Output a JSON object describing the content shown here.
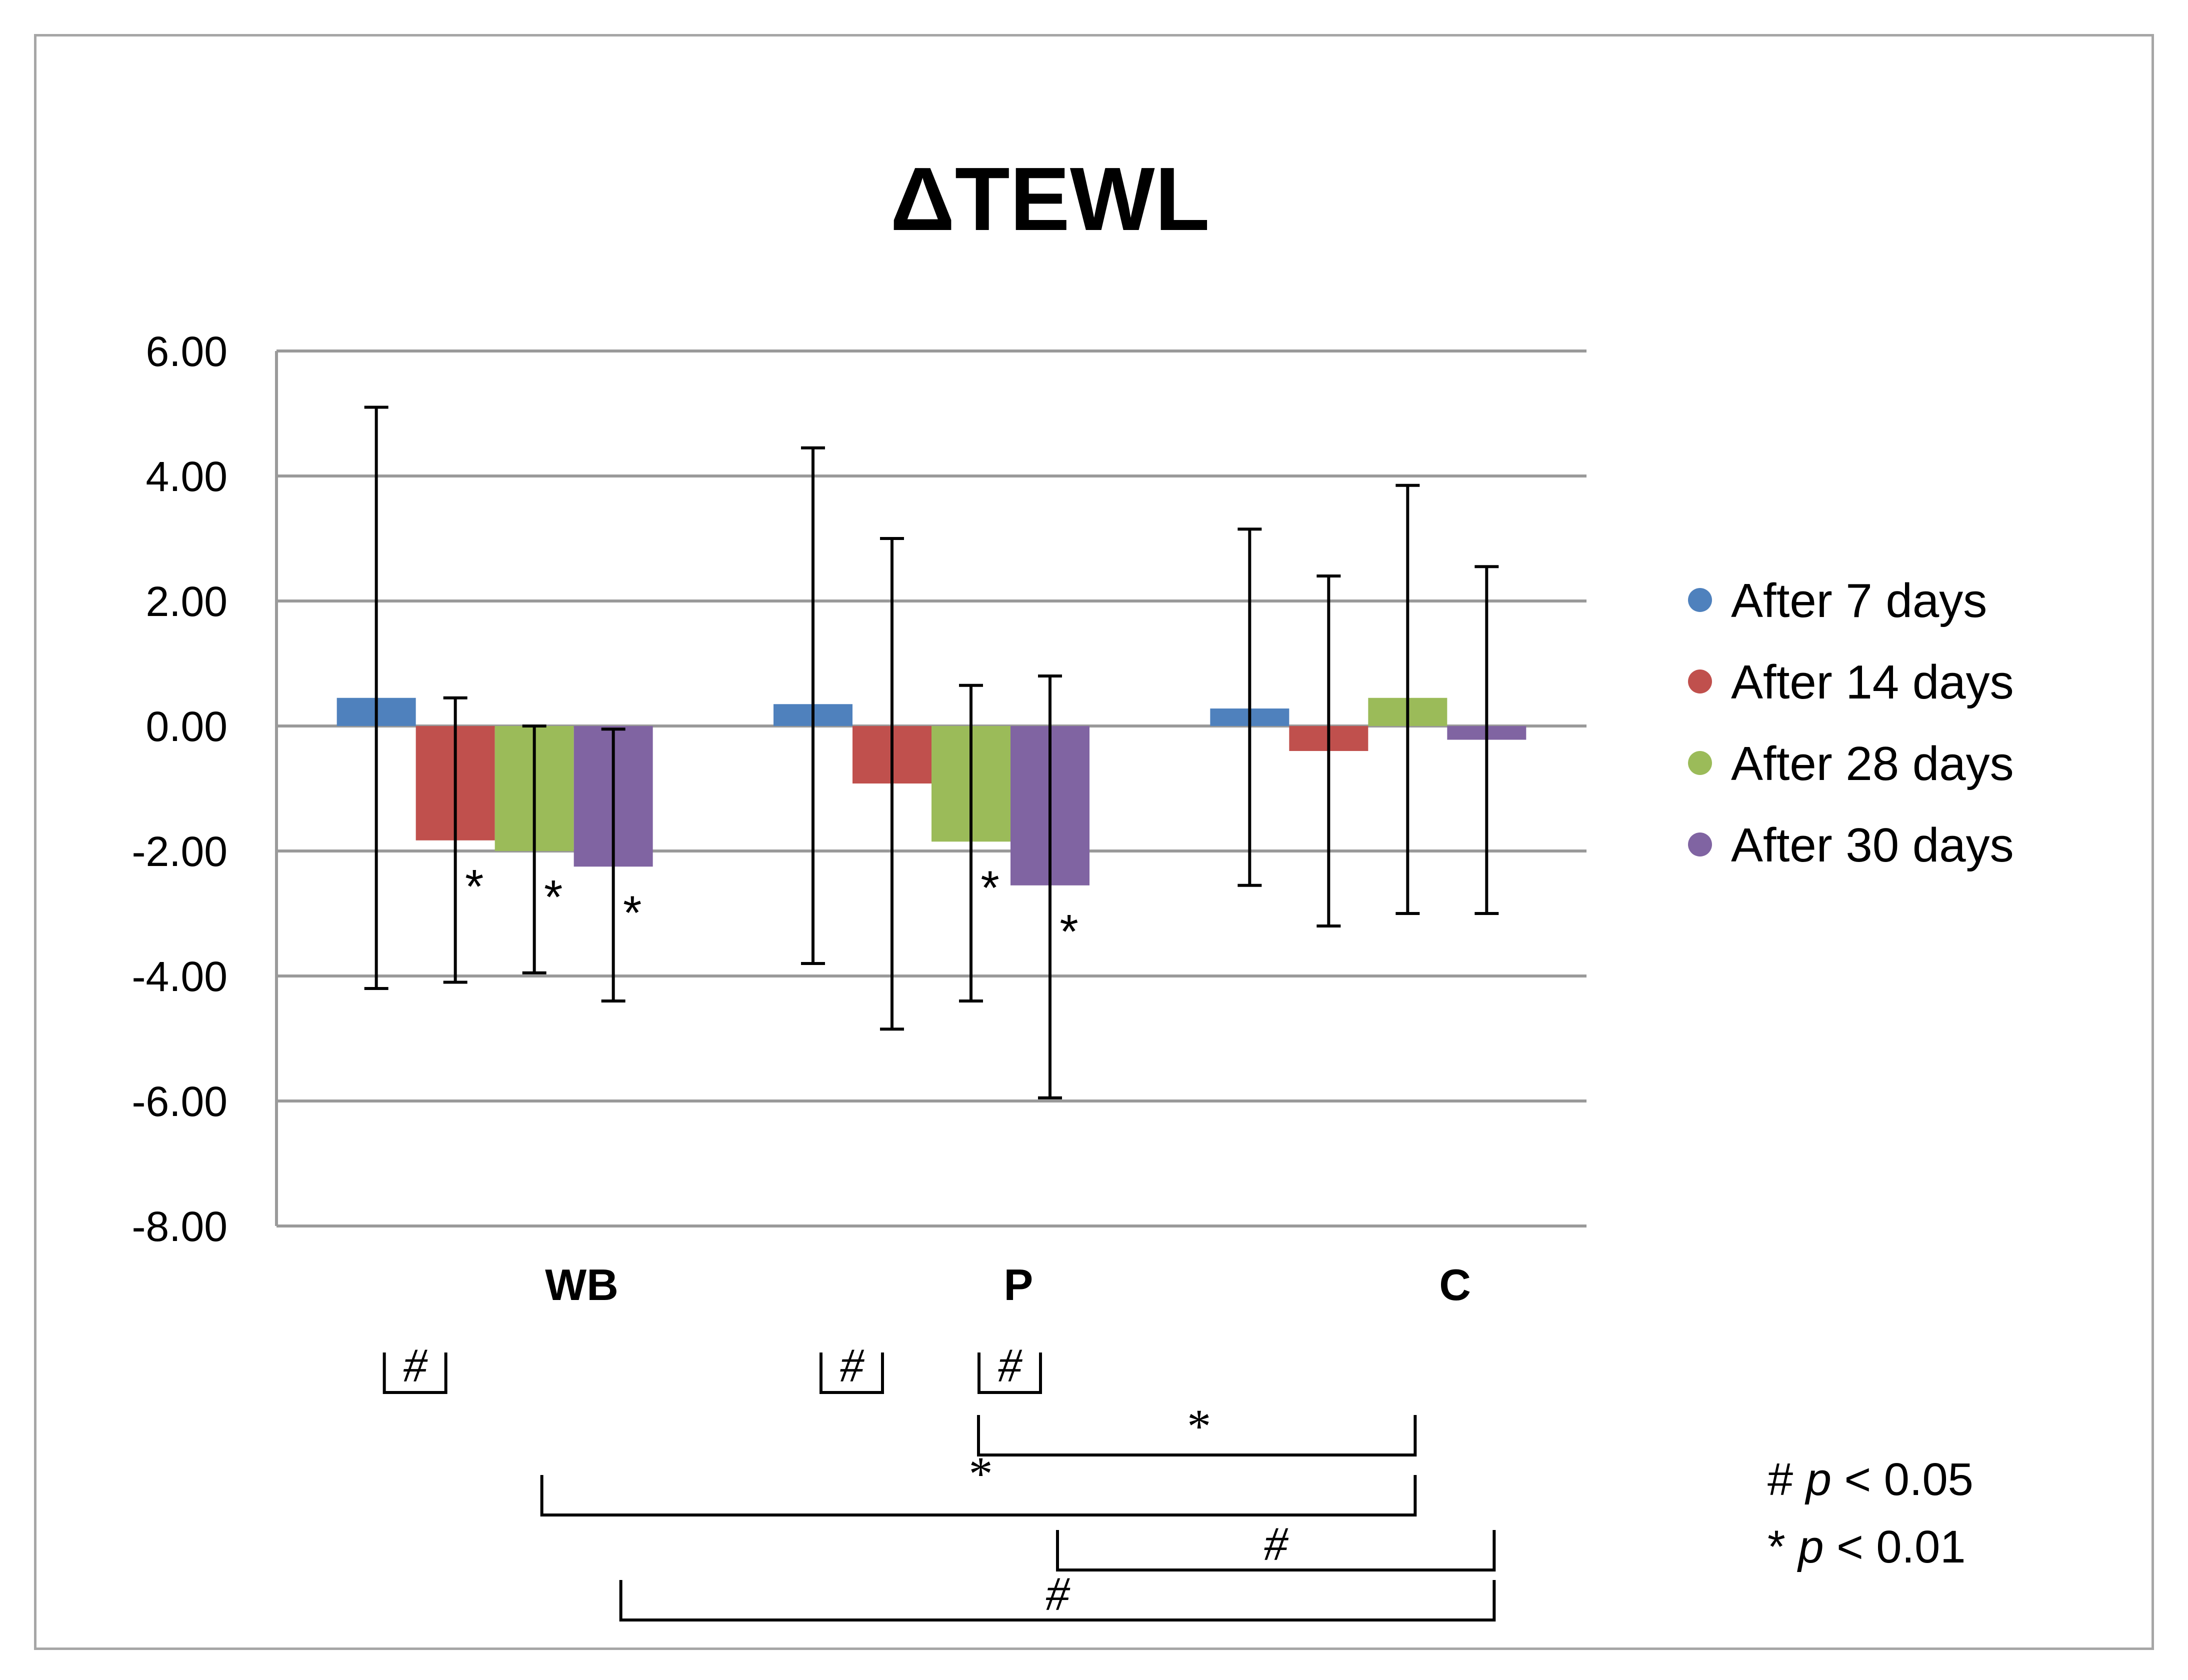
{
  "chart_data": {
    "type": "bar",
    "title": "ΔTEWL",
    "categories": [
      "WB",
      "P",
      "C"
    ],
    "ylim": [
      -8,
      6
    ],
    "ytick_step": 2,
    "ytick_labels": [
      "6.00",
      "4.00",
      "2.00",
      "0.00",
      "-2.00",
      "-4.00",
      "-6.00",
      "-8.00"
    ],
    "grid": true,
    "legend_position": "right",
    "series": [
      {
        "name": "After 7 days",
        "color": "#4f81bd",
        "values": [
          0.45,
          0.35,
          0.28
        ],
        "err_low": [
          -4.2,
          -3.8,
          -2.55
        ],
        "err_high": [
          5.1,
          4.45,
          3.15
        ]
      },
      {
        "name": "After 14 days",
        "color": "#c0504d",
        "values": [
          -1.83,
          -0.92,
          -0.4
        ],
        "err_low": [
          -4.1,
          -4.85,
          -3.2
        ],
        "err_high": [
          0.45,
          3.0,
          2.4
        ]
      },
      {
        "name": "After 28 days",
        "color": "#9bbb59",
        "values": [
          -2.0,
          -1.85,
          0.45
        ],
        "err_low": [
          -3.95,
          -4.4,
          -3.0
        ],
        "err_high": [
          0.0,
          0.65,
          3.85
        ]
      },
      {
        "name": "After 30 days",
        "color": "#8064a2",
        "values": [
          -2.25,
          -2.55,
          -0.22
        ],
        "err_low": [
          -4.4,
          -5.95,
          -3.0
        ],
        "err_high": [
          -0.05,
          0.8,
          2.55
        ]
      }
    ],
    "bar_annotations": [
      {
        "category": 0,
        "series": 1,
        "text": "*"
      },
      {
        "category": 0,
        "series": 2,
        "text": "*"
      },
      {
        "category": 0,
        "series": 3,
        "text": "*"
      },
      {
        "category": 1,
        "series": 2,
        "text": "*"
      },
      {
        "category": 1,
        "series": 3,
        "text": "*"
      }
    ],
    "brackets": [
      {
        "from": [
          0,
          0
        ],
        "to": [
          0,
          1
        ],
        "text": "#",
        "style": "small"
      },
      {
        "from": [
          1,
          0
        ],
        "to": [
          1,
          1
        ],
        "text": "#",
        "style": "small"
      },
      {
        "from": [
          1,
          2
        ],
        "to": [
          1,
          3
        ],
        "text": "#",
        "style": "small"
      },
      {
        "from": [
          1,
          2
        ],
        "to": [
          2,
          2
        ],
        "text": "*",
        "style": "long"
      },
      {
        "from": [
          0,
          2
        ],
        "to": [
          2,
          2
        ],
        "text": "*",
        "style": "long"
      },
      {
        "from": [
          1,
          3
        ],
        "to": [
          2,
          3
        ],
        "text": "#",
        "style": "long"
      },
      {
        "from": [
          0,
          3
        ],
        "to": [
          2,
          3
        ],
        "text": "#",
        "style": "long"
      }
    ],
    "significance_legend": [
      {
        "symbol": "#",
        "p": "p",
        "rest": " < 0.05"
      },
      {
        "symbol": "*",
        "p": "p",
        "rest": " < 0.01"
      }
    ]
  }
}
